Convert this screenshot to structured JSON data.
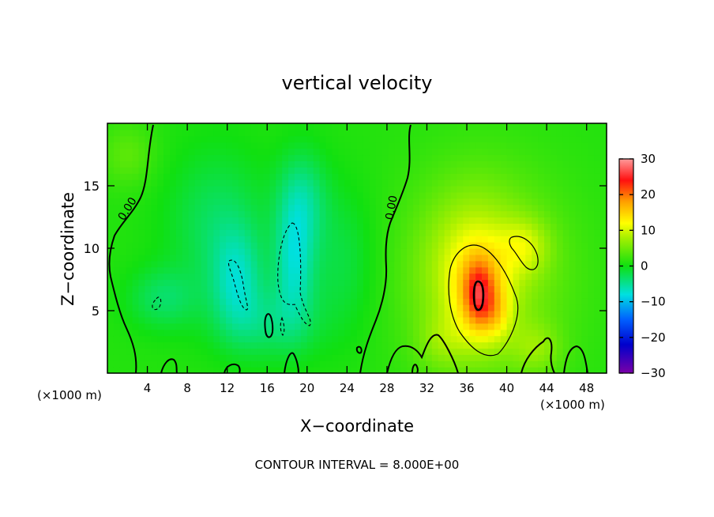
{
  "chart_data": {
    "type": "heatmap",
    "title": "vertical velocity",
    "xlabel": "X−coordinate",
    "ylabel": "Z−coordinate",
    "x_unit_label": "(×1000 m)",
    "z_unit_label": "(×1000 m)",
    "footer": "CONTOUR INTERVAL = 8.000E+00",
    "xlim": [
      0,
      50
    ],
    "ylim": [
      0,
      20
    ],
    "x_ticks": [
      4,
      8,
      12,
      16,
      20,
      24,
      28,
      32,
      36,
      40,
      44,
      48
    ],
    "x_tick_labels": [
      "4",
      "8",
      "12",
      "16",
      "20",
      "24",
      "28",
      "32",
      "36",
      "40",
      "44",
      "48"
    ],
    "y_ticks": [
      5,
      10,
      15
    ],
    "y_tick_labels": [
      "5",
      "10",
      "15"
    ],
    "colorbar": {
      "range": [
        -30,
        30
      ],
      "ticks": [
        30,
        20,
        10,
        0,
        -10,
        -20,
        -30
      ],
      "tick_labels": [
        "30",
        "20",
        "10",
        "0",
        "−10",
        "−20",
        "−30"
      ],
      "stops": [
        {
          "value": -30,
          "color": "#7a00a8"
        },
        {
          "value": -22,
          "color": "#0000cc"
        },
        {
          "value": -15,
          "color": "#0060ff"
        },
        {
          "value": -8,
          "color": "#00e0e0"
        },
        {
          "value": 0,
          "color": "#10e010"
        },
        {
          "value": 8,
          "color": "#a8f000"
        },
        {
          "value": 12,
          "color": "#ffff00"
        },
        {
          "value": 18,
          "color": "#ffa000"
        },
        {
          "value": 24,
          "color": "#ff1010"
        },
        {
          "value": 30,
          "color": "#ff9a9a"
        }
      ]
    },
    "contour_labels": [
      {
        "text": "0.00",
        "x": 2.3,
        "z": 13.0,
        "angle": -58
      },
      {
        "text": "0.00",
        "x": 28.8,
        "z": 13.2,
        "angle": -80
      }
    ],
    "background_value": 1,
    "features": [
      {
        "x": 2,
        "z": 17.5,
        "rx": 2.8,
        "rz": 2.5,
        "value": 3
      },
      {
        "x": 5.5,
        "z": 6,
        "rx": 3.5,
        "rz": 2.5,
        "value": -4
      },
      {
        "x": 11,
        "z": 12,
        "rx": 5,
        "rz": 6,
        "value": -4
      },
      {
        "x": 13,
        "z": 7.5,
        "rx": 2.5,
        "rz": 4,
        "value": -6
      },
      {
        "x": 18.7,
        "z": 8.8,
        "rx": 2,
        "rz": 4.8,
        "value": -7
      },
      {
        "x": 19.5,
        "z": 14,
        "rx": 2.5,
        "rz": 4,
        "value": -5
      },
      {
        "x": 16,
        "z": 4,
        "rx": 5,
        "rz": 3,
        "value": -4
      },
      {
        "x": 23.5,
        "z": 9,
        "rx": 3.5,
        "rz": 6,
        "value": -3
      },
      {
        "x": 38,
        "z": 8,
        "rx": 8,
        "rz": 8,
        "value": 6
      },
      {
        "x": 36.3,
        "z": 8.4,
        "rx": 4.5,
        "rz": 6,
        "value": 5
      },
      {
        "x": 37.3,
        "z": 6.3,
        "rx": 2.4,
        "rz": 3.6,
        "value": 8
      },
      {
        "x": 37.2,
        "z": 6.3,
        "rx": 1.3,
        "rz": 2.4,
        "value": 7
      },
      {
        "x": 39,
        "z": 4.8,
        "rx": 1.5,
        "rz": 2,
        "value": 4
      },
      {
        "x": 41.8,
        "z": 10.2,
        "rx": 2.5,
        "rz": 2.2,
        "value": 5
      },
      {
        "x": 43,
        "z": 2,
        "rx": 2.5,
        "rz": 2,
        "value": 4
      },
      {
        "x": 33.5,
        "z": 2.5,
        "rx": 2.5,
        "rz": 2.2,
        "value": 3
      }
    ]
  }
}
